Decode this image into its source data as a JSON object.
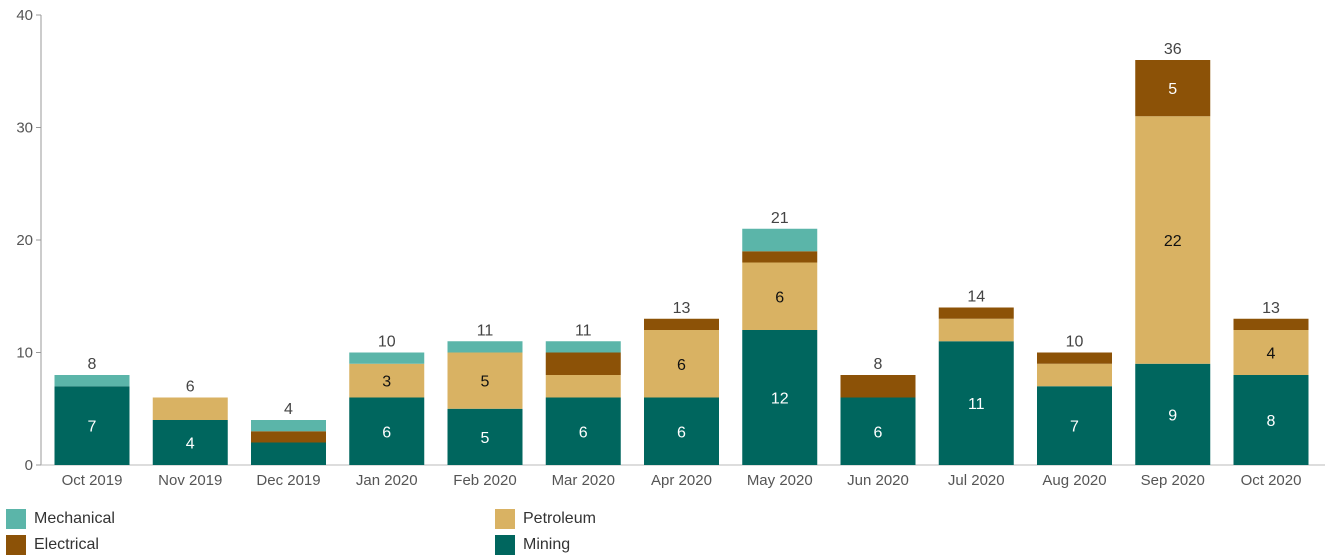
{
  "chart_data": {
    "type": "bar",
    "stacked": true,
    "categories": [
      "Oct 2019",
      "Nov 2019",
      "Dec 2019",
      "Jan 2020",
      "Feb 2020",
      "Mar 2020",
      "Apr 2020",
      "May 2020",
      "Jun 2020",
      "Jul 2020",
      "Aug 2020",
      "Sep 2020",
      "Oct 2020"
    ],
    "series": [
      {
        "name": "Mining",
        "color": "#00665e",
        "values": [
          7,
          4,
          2,
          6,
          5,
          6,
          6,
          12,
          6,
          11,
          7,
          9,
          8
        ],
        "label_color": "#ffffff",
        "labels": [
          "7",
          "4",
          "",
          "6",
          "5",
          "6",
          "6",
          "12",
          "6",
          "11",
          "7",
          "9",
          "8"
        ]
      },
      {
        "name": "Petroleum",
        "color": "#d9b263",
        "values": [
          0,
          2,
          0,
          3,
          5,
          2,
          6,
          6,
          0,
          2,
          2,
          22,
          4
        ],
        "label_color": "#111111",
        "labels": [
          "",
          "",
          "",
          "3",
          "5",
          "",
          "6",
          "6",
          "",
          "",
          "",
          "22",
          "4"
        ]
      },
      {
        "name": "Electrical",
        "color": "#8c5207",
        "values": [
          0,
          0,
          1,
          0,
          0,
          2,
          1,
          1,
          2,
          1,
          1,
          5,
          1
        ],
        "label_color": "#ffffff",
        "labels": [
          "",
          "",
          "",
          "",
          "",
          "",
          "",
          "",
          "",
          "",
          "",
          "5",
          ""
        ]
      },
      {
        "name": "Mechanical",
        "color": "#5bb5a9",
        "values": [
          1,
          0,
          1,
          1,
          1,
          1,
          0,
          2,
          0,
          0,
          0,
          0,
          0
        ],
        "label_color": "#ffffff",
        "labels": [
          "",
          "",
          "",
          "",
          "",
          "",
          "",
          "",
          "",
          "",
          "",
          "",
          ""
        ]
      }
    ],
    "totals": [
      8,
      6,
      4,
      10,
      11,
      11,
      13,
      21,
      8,
      14,
      10,
      36,
      13
    ],
    "ylim": [
      0,
      40
    ],
    "yticks": [
      0,
      10,
      20,
      30,
      40
    ],
    "grid": false,
    "legend_position": "bottom",
    "title": "",
    "xlabel": "",
    "ylabel": ""
  },
  "legend": {
    "mechanical": "Mechanical",
    "electrical": "Electrical",
    "petroleum": "Petroleum",
    "mining": "Mining"
  },
  "colors": {
    "mechanical": "#5bb5a9",
    "electrical": "#8c5207",
    "petroleum": "#d9b263",
    "mining": "#00665e"
  }
}
